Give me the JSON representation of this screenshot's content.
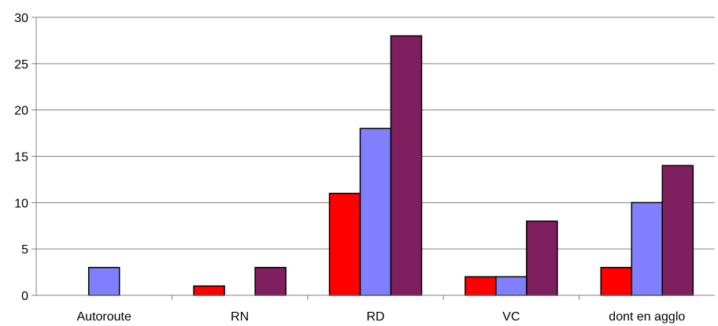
{
  "chart_data": {
    "type": "bar",
    "title": "",
    "xlabel": "",
    "ylabel": "",
    "categories": [
      "Autoroute",
      "RN",
      "RD",
      "VC",
      "dont en agglo"
    ],
    "ylim": [
      0,
      30
    ],
    "yticks": [
      0,
      5,
      10,
      15,
      20,
      25,
      30
    ],
    "grid": "horizontal",
    "legend": "none",
    "series": [
      {
        "color": "#ff0000",
        "values": [
          0,
          1,
          11,
          2,
          3
        ]
      },
      {
        "color": "#8080ff",
        "values": [
          3,
          0,
          18,
          2,
          10
        ]
      },
      {
        "color": "#7f1f5f",
        "values": [
          0,
          3,
          28,
          8,
          14
        ]
      }
    ]
  }
}
